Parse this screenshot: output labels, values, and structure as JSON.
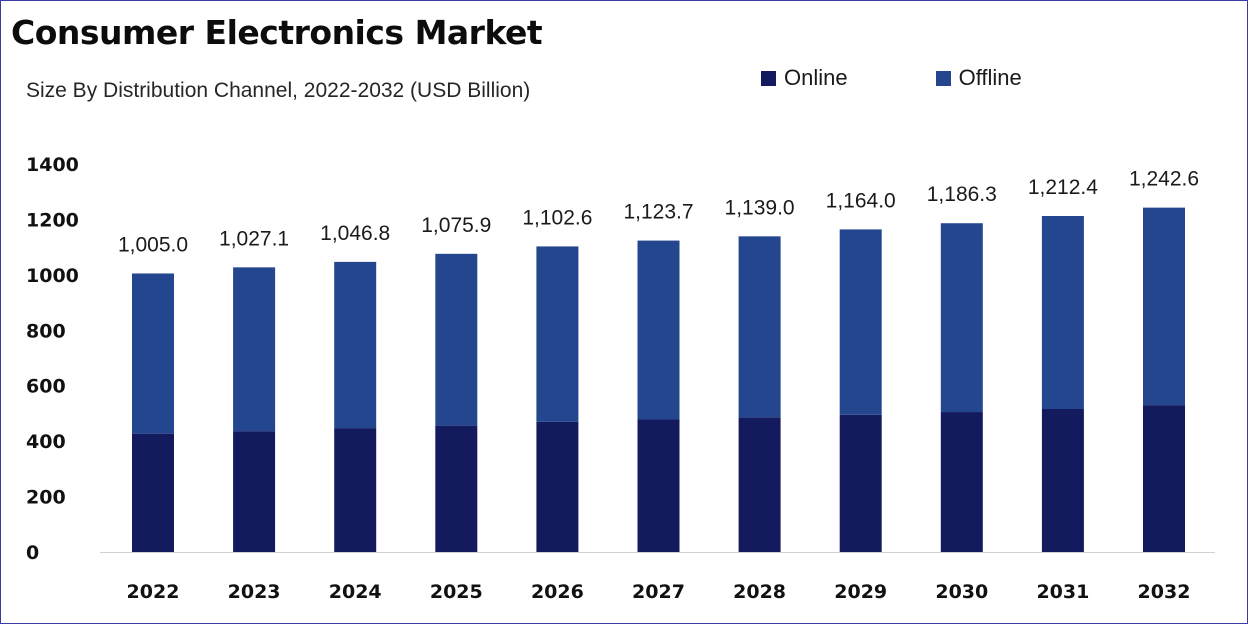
{
  "chart_data": {
    "type": "bar",
    "stacked": true,
    "title": "Consumer Electronics Market",
    "subtitle": "Size By Distribution Channel, 2022-2032 (USD Billion)",
    "categories": [
      "2022",
      "2023",
      "2024",
      "2025",
      "2026",
      "2027",
      "2028",
      "2029",
      "2030",
      "2031",
      "2032"
    ],
    "series": [
      {
        "name": "Online",
        "color": "#141a5e",
        "values": [
          427,
          436,
          447,
          456,
          470,
          478,
          486,
          495,
          505,
          516,
          530
        ]
      },
      {
        "name": "Offline",
        "color": "#24468f",
        "values": [
          578,
          591.1,
          599.8,
          619.9,
          632.6,
          645.7,
          653,
          669,
          681.3,
          696.4,
          712.6
        ]
      }
    ],
    "totals": [
      "1,005.0",
      "1,027.1",
      "1,046.8",
      "1,075.9",
      "1,102.6",
      "1,123.7",
      "1,139.0",
      "1,164.0",
      "1,186.3",
      "1,212.4",
      "1,242.6"
    ],
    "y_ticks": [
      "0",
      "200",
      "400",
      "600",
      "800",
      "1000",
      "1200",
      "1400"
    ],
    "ylim": [
      0,
      1400
    ],
    "legend_position": "top-right",
    "grid": false
  }
}
